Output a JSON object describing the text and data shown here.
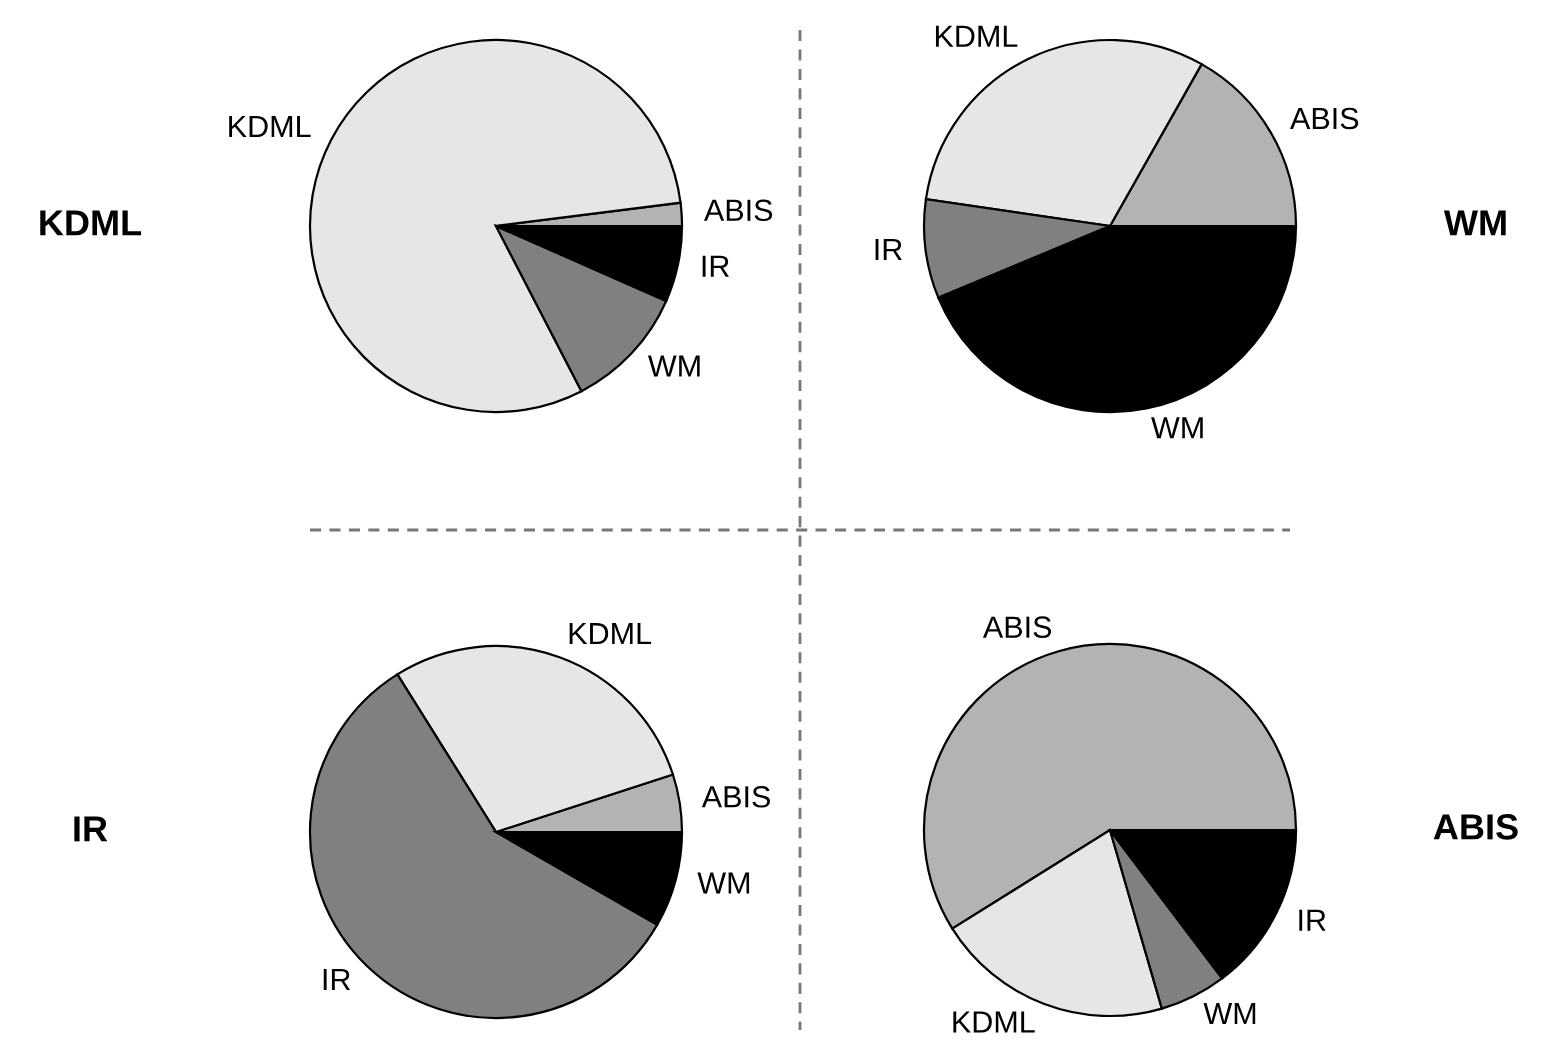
{
  "chart_data": [
    {
      "type": "pie",
      "title": "KDML",
      "categories": [
        "ABIS",
        "KDML",
        "WM",
        "IR"
      ],
      "values": [
        2,
        80.6,
        10.8,
        6.6
      ],
      "colors": [
        "#b3b3b3",
        "#e6e6e6",
        "#808080",
        "#000000"
      ]
    },
    {
      "type": "pie",
      "title": "WM",
      "categories": [
        "ABIS",
        "KDML",
        "IR",
        "WM"
      ],
      "values": [
        16.8,
        30.9,
        8.6,
        43.7
      ],
      "colors": [
        "#b3b3b3",
        "#e6e6e6",
        "#808080",
        "#000000"
      ]
    },
    {
      "type": "pie",
      "title": "IR",
      "categories": [
        "ABIS",
        "KDML",
        "IR",
        "WM"
      ],
      "values": [
        5,
        28.9,
        57.8,
        8.3
      ],
      "colors": [
        "#b3b3b3",
        "#e6e6e6",
        "#808080",
        "#000000"
      ]
    },
    {
      "type": "pie",
      "title": "ABIS",
      "categories": [
        "ABIS",
        "KDML",
        "WM",
        "IR"
      ],
      "values": [
        58.9,
        20.6,
        5.8,
        14.7
      ],
      "colors": [
        "#b3b3b3",
        "#e6e6e6",
        "#808080",
        "#000000"
      ]
    }
  ]
}
